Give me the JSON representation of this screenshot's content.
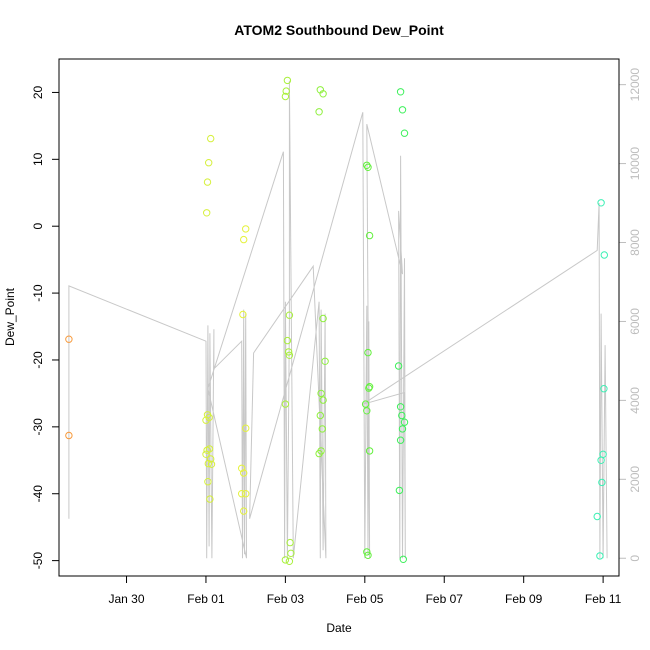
{
  "chart_data": {
    "type": "scatter",
    "title": "ATOM2 Southbound Dew_Point",
    "xlabel": "Date",
    "ylabel": "Dew_Point",
    "x_ticks": [
      "Jan 30",
      "Feb 01",
      "Feb 03",
      "Feb 05",
      "Feb 07",
      "Feb 09",
      "Feb 11"
    ],
    "x_tick_days": [
      30,
      32,
      34,
      36,
      38,
      40,
      42
    ],
    "xlim": [
      28.3,
      42.4
    ],
    "ylim": [
      -52.3,
      25.0
    ],
    "y_ticks": [
      -50,
      -40,
      -30,
      -20,
      -10,
      0,
      10,
      20
    ],
    "y2_ticks": [
      0,
      2000,
      4000,
      6000,
      8000,
      10000,
      12000
    ],
    "y2lim": [
      -450,
      12650
    ],
    "grid": false,
    "series": [
      {
        "color": "#f79a3c",
        "points": [
          [
            28.55,
            -16.9
          ],
          [
            28.55,
            -31.3
          ]
        ]
      },
      {
        "color": "#d6f03c",
        "points": [
          [
            32.02,
            2.0
          ],
          [
            32.04,
            6.6
          ],
          [
            32.07,
            9.5
          ],
          [
            32.12,
            13.1
          ],
          [
            32.0,
            -34.1
          ],
          [
            32.03,
            -33.5
          ],
          [
            32.05,
            -38.2
          ],
          [
            32.1,
            -40.8
          ],
          [
            32.0,
            -29.0
          ],
          [
            32.04,
            -28.2
          ],
          [
            32.08,
            -28.6
          ],
          [
            32.12,
            -34.8
          ],
          [
            32.06,
            -35.5
          ],
          [
            32.14,
            -35.6
          ],
          [
            32.09,
            -33.3
          ]
        ]
      },
      {
        "color": "#e5f23c",
        "points": [
          [
            32.95,
            -2.0
          ],
          [
            33.0,
            -0.4
          ],
          [
            32.93,
            -13.2
          ],
          [
            32.9,
            -36.2
          ],
          [
            32.95,
            -36.9
          ],
          [
            32.9,
            -40.0
          ],
          [
            33.0,
            -40.0
          ],
          [
            32.95,
            -42.6
          ],
          [
            33.0,
            -30.2
          ]
        ]
      },
      {
        "color": "#a9f03c",
        "points": [
          [
            34.05,
            21.8
          ],
          [
            34.02,
            20.2
          ],
          [
            34.0,
            19.4
          ],
          [
            34.1,
            -13.3
          ],
          [
            34.05,
            -17.1
          ],
          [
            34.08,
            -18.8
          ],
          [
            34.1,
            -19.3
          ],
          [
            34.0,
            -26.6
          ],
          [
            34.12,
            -47.3
          ],
          [
            34.14,
            -48.9
          ],
          [
            34.0,
            -49.9
          ],
          [
            34.1,
            -50.1
          ]
        ]
      },
      {
        "color": "#8ef03c",
        "points": [
          [
            34.88,
            20.4
          ],
          [
            34.95,
            19.8
          ],
          [
            34.85,
            17.1
          ],
          [
            34.95,
            -13.8
          ],
          [
            35.0,
            -20.2
          ],
          [
            34.9,
            -25.0
          ],
          [
            34.95,
            -26.0
          ],
          [
            34.88,
            -28.3
          ],
          [
            34.93,
            -30.3
          ],
          [
            34.9,
            -33.6
          ],
          [
            34.85,
            -34.0
          ]
        ]
      },
      {
        "color": "#62f03c",
        "points": [
          [
            36.05,
            9.1
          ],
          [
            36.08,
            8.8
          ],
          [
            36.12,
            -1.4
          ],
          [
            36.08,
            -18.9
          ],
          [
            36.12,
            -24.0
          ],
          [
            36.1,
            -24.2
          ],
          [
            36.02,
            -26.6
          ],
          [
            36.05,
            -27.6
          ],
          [
            36.12,
            -33.6
          ],
          [
            36.05,
            -48.7
          ],
          [
            36.08,
            -49.2
          ]
        ]
      },
      {
        "color": "#3cf05a",
        "points": [
          [
            36.9,
            20.1
          ],
          [
            36.95,
            17.4
          ],
          [
            37.0,
            13.9
          ],
          [
            36.85,
            -20.9
          ],
          [
            36.9,
            -27.0
          ],
          [
            36.93,
            -28.3
          ],
          [
            37.0,
            -29.3
          ],
          [
            36.95,
            -30.3
          ],
          [
            36.9,
            -32.0
          ],
          [
            36.87,
            -39.5
          ],
          [
            36.97,
            -49.8
          ]
        ]
      },
      {
        "color": "#3cf0b4",
        "points": [
          [
            41.95,
            3.5
          ],
          [
            42.03,
            -4.3
          ],
          [
            42.02,
            -24.3
          ],
          [
            42.0,
            -34.1
          ],
          [
            41.95,
            -35.0
          ],
          [
            41.97,
            -38.3
          ],
          [
            41.85,
            -43.4
          ],
          [
            41.92,
            -49.3
          ]
        ]
      }
    ],
    "secondary_line": {
      "color": "#c8c8c8",
      "axis": "right",
      "points": [
        [
          28.55,
          1000
        ],
        [
          28.55,
          6900
        ],
        [
          32.0,
          5500
        ],
        [
          32.02,
          0
        ],
        [
          32.05,
          5900
        ],
        [
          32.08,
          300
        ],
        [
          32.1,
          5700
        ],
        [
          32.15,
          0
        ],
        [
          32.2,
          5800
        ],
        [
          32.2,
          4800
        ],
        [
          32.9,
          5500
        ],
        [
          32.92,
          0
        ],
        [
          32.95,
          6300
        ],
        [
          32.97,
          100
        ],
        [
          33.0,
          6200
        ],
        [
          33.02,
          0
        ],
        [
          32.05,
          4300
        ],
        [
          33.95,
          10300
        ],
        [
          33.98,
          0
        ],
        [
          34.0,
          6500
        ],
        [
          34.05,
          0
        ],
        [
          34.1,
          6000
        ],
        [
          34.1,
          12100
        ],
        [
          34.2,
          0
        ],
        [
          34.85,
          6500
        ],
        [
          34.88,
          0
        ],
        [
          34.9,
          6300
        ],
        [
          34.95,
          200
        ],
        [
          35.0,
          6200
        ],
        [
          35.02,
          0
        ],
        [
          34.7,
          7400
        ],
        [
          33.2,
          5200
        ],
        [
          33.1,
          1000
        ],
        [
          35.95,
          11300
        ],
        [
          36.0,
          0
        ],
        [
          36.05,
          6400
        ],
        [
          36.08,
          100
        ],
        [
          36.1,
          6000
        ],
        [
          36.12,
          0
        ],
        [
          36.05,
          11000
        ],
        [
          36.95,
          7200
        ],
        [
          36.85,
          8800
        ],
        [
          36.88,
          0
        ],
        [
          36.9,
          10200
        ],
        [
          36.95,
          0
        ],
        [
          37.0,
          7600
        ],
        [
          37.02,
          0
        ],
        [
          37.0,
          4200
        ],
        [
          35.95,
          3900
        ],
        [
          41.85,
          7800
        ],
        [
          41.9,
          9000
        ],
        [
          41.92,
          0
        ],
        [
          41.95,
          6200
        ],
        [
          42.0,
          0
        ],
        [
          42.05,
          5400
        ],
        [
          42.1,
          0
        ]
      ]
    }
  }
}
